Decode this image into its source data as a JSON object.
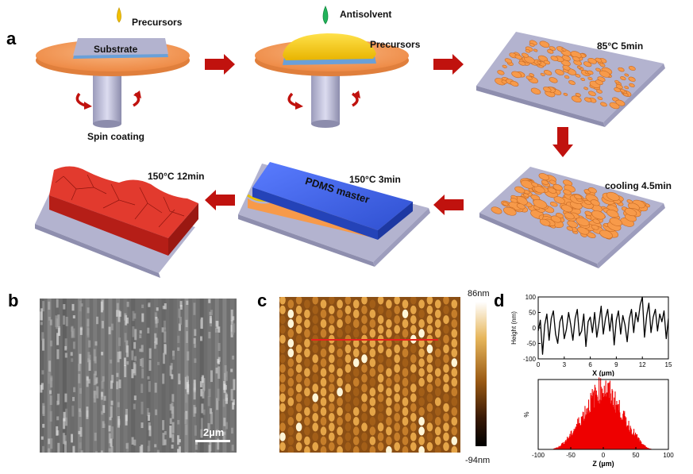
{
  "panels": {
    "a": "a",
    "b": "b",
    "c": "c",
    "d": "d"
  },
  "schematic": {
    "precursors_label": "Precursors",
    "substrate_label": "Substrate",
    "spin_coating_label": "Spin coating",
    "antisolvent_label": "Antisolvent",
    "precursors_label_2": "Precursors",
    "step_85": "85°C 5min",
    "step_cooling": "cooling 4.5min",
    "step_150_3": "150°C 3min",
    "pdms_label": "PDMS master",
    "step_150_12": "150°C 12min",
    "colors": {
      "precursor_drop": "#f2c100",
      "antisolvent_drop": "#21b35a",
      "spin_plate": "#f4a062",
      "spin_axle": "#c8c8e0",
      "substrate": "#b3b3cf",
      "grain": "#f79a4a",
      "pdms": "#3a5fe0",
      "film_red": "#d9332a",
      "arrow": "#c0120e"
    }
  },
  "sem": {
    "scale_bar_label": "2µm"
  },
  "afm": {
    "colorbar_max": "86nm",
    "colorbar_min": "-94nm",
    "profile_line_color": "#e8201c"
  },
  "profile_chart": {
    "xlabel": "X (µm)",
    "ylabel": "Height (nm)",
    "xticks": [
      "0",
      "3",
      "6",
      "9",
      "12",
      "15"
    ],
    "yticks": [
      "100",
      "50",
      "0",
      "-50",
      "-100"
    ]
  },
  "histogram_chart": {
    "xlabel": "Z (µm)",
    "ylabel": "%",
    "xticks": [
      "-100",
      "-50",
      "0",
      "50",
      "100"
    ],
    "color": "#ee0000"
  },
  "chart_data": [
    {
      "type": "line",
      "xlabel": "X (µm)",
      "ylabel": "Height (nm)",
      "xlim": [
        0,
        15
      ],
      "ylim": [
        -100,
        100
      ],
      "x": [
        0,
        0.25,
        0.5,
        0.75,
        1.0,
        1.25,
        1.5,
        1.75,
        2.0,
        2.25,
        2.5,
        2.75,
        3.0,
        3.25,
        3.5,
        3.75,
        4.0,
        4.25,
        4.5,
        4.75,
        5.0,
        5.25,
        5.5,
        5.75,
        6.0,
        6.25,
        6.5,
        6.75,
        7.0,
        7.25,
        7.5,
        7.75,
        8.0,
        8.25,
        8.5,
        8.75,
        9.0,
        9.25,
        9.5,
        9.75,
        10.0,
        10.25,
        10.5,
        10.75,
        11.0,
        11.25,
        11.5,
        11.75,
        12.0,
        12.25,
        12.5,
        12.75,
        13.0,
        13.25,
        13.5,
        13.75,
        14.0,
        14.25,
        14.5,
        14.75,
        15.0
      ],
      "y": [
        -10,
        25,
        -85,
        10,
        45,
        -40,
        30,
        55,
        -20,
        -50,
        20,
        40,
        -35,
        -5,
        50,
        10,
        -40,
        30,
        60,
        -25,
        -10,
        45,
        -60,
        20,
        35,
        -15,
        50,
        -30,
        15,
        70,
        -20,
        30,
        60,
        -10,
        45,
        -55,
        25,
        55,
        -20,
        40,
        10,
        -45,
        30,
        60,
        -15,
        50,
        20,
        75,
        100,
        -30,
        40,
        80,
        -15,
        35,
        60,
        -10,
        45,
        20,
        55,
        -35,
        30
      ]
    },
    {
      "type": "area",
      "xlabel": "Z (µm)",
      "ylabel": "%",
      "xlim": [
        -100,
        100
      ],
      "x": [
        -100,
        -90,
        -80,
        -70,
        -60,
        -50,
        -40,
        -30,
        -20,
        -10,
        0,
        10,
        20,
        30,
        40,
        50,
        60,
        70,
        80,
        90,
        100
      ],
      "y": [
        0,
        0,
        0,
        0.3,
        1.0,
        2.0,
        3.4,
        4.8,
        6.3,
        7.6,
        8.2,
        7.4,
        6.0,
        4.4,
        3.0,
        1.8,
        0.6,
        0.1,
        0,
        0,
        0
      ]
    }
  ]
}
